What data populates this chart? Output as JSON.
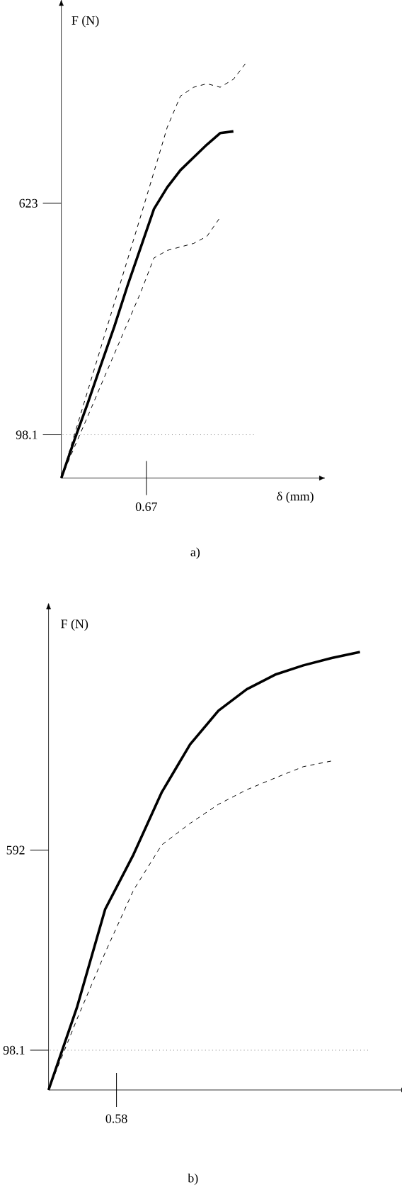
{
  "chart_data": [
    {
      "type": "line",
      "xlabel": "δ (mm)",
      "ylabel": "F (N)",
      "ylim": [
        0,
        1070
      ],
      "yticks": [
        98.1,
        623
      ],
      "categories": [
        null,
        null,
        null,
        null,
        null,
        null,
        null,
        null,
        null,
        null,
        null,
        null,
        null,
        null,
        null
      ],
      "ref_lines": [
        {
          "axis": "y",
          "value": 98.1,
          "color": "#777777",
          "line_style": "dotted"
        }
      ],
      "annotations": [
        "0.67",
        "a)"
      ],
      "series": [
        {
          "color": "#000000",
          "line_style": "solid",
          "values": [
            0,
            87,
            170,
            257,
            343,
            436,
            523,
            610,
            659,
            698,
            727,
            756,
            782,
            786,
            null
          ]
        },
        {
          "color": "#000000",
          "line_style": "dashed",
          "values": [
            0,
            99,
            198,
            297,
            396,
            495,
            594,
            694,
            795,
            866,
            886,
            894,
            886,
            904,
            943
          ]
        },
        {
          "color": "#000000",
          "line_style": "dashed",
          "values": [
            0,
            71,
            140,
            211,
            281,
            351,
            421,
            499,
            516,
            524,
            532,
            548,
            591,
            null,
            null
          ]
        }
      ]
    },
    {
      "type": "line",
      "ylabel": "F (N)",
      "ylim": [
        0,
        1186
      ],
      "yticks": [
        98.1,
        592
      ],
      "categories": [
        null,
        null,
        null,
        null,
        null,
        null,
        null,
        null,
        null,
        null,
        null,
        null
      ],
      "ref_lines": [
        {
          "axis": "y",
          "value": 98.1,
          "color": "#777777",
          "line_style": "dotted"
        }
      ],
      "annotations": [
        "0.58",
        "b)"
      ],
      "series": [
        {
          "color": "#000000",
          "line_style": "solid",
          "values": [
            0,
            203,
            446,
            581,
            735,
            853,
            936,
            989,
            1025,
            1048,
            1066,
            1081
          ]
        },
        {
          "color": "#000000",
          "line_style": "dashed",
          "values": [
            0,
            174,
            339,
            493,
            605,
            658,
            705,
            741,
            770,
            798,
            812,
            null
          ]
        }
      ]
    }
  ]
}
